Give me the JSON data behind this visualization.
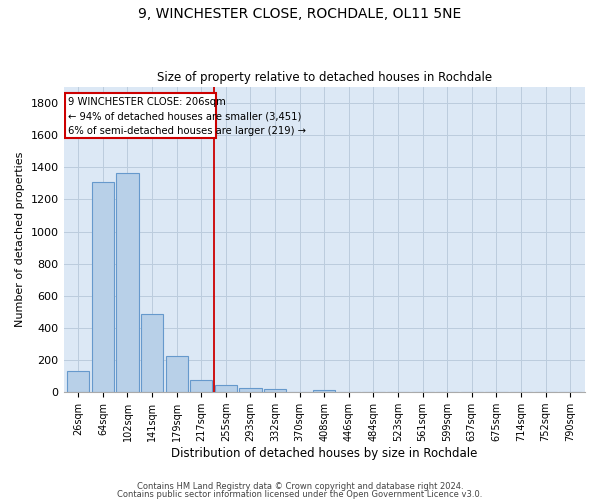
{
  "title_line1": "9, WINCHESTER CLOSE, ROCHDALE, OL11 5NE",
  "title_line2": "Size of property relative to detached houses in Rochdale",
  "xlabel": "Distribution of detached houses by size in Rochdale",
  "ylabel": "Number of detached properties",
  "bin_labels": [
    "26sqm",
    "64sqm",
    "102sqm",
    "141sqm",
    "179sqm",
    "217sqm",
    "255sqm",
    "293sqm",
    "332sqm",
    "370sqm",
    "408sqm",
    "446sqm",
    "484sqm",
    "523sqm",
    "561sqm",
    "599sqm",
    "637sqm",
    "675sqm",
    "714sqm",
    "752sqm",
    "790sqm"
  ],
  "bar_values": [
    135,
    1310,
    1365,
    490,
    225,
    75,
    45,
    28,
    18,
    0,
    15,
    0,
    0,
    0,
    0,
    0,
    0,
    0,
    0,
    0,
    0
  ],
  "bar_color": "#b8d0e8",
  "bar_edge_color": "#6699cc",
  "annotation_text_line1": "9 WINCHESTER CLOSE: 206sqm",
  "annotation_text_line2": "← 94% of detached houses are smaller (3,451)",
  "annotation_text_line3": "6% of semi-detached houses are larger (219) →",
  "annotation_box_color": "#cc0000",
  "vline_color": "#cc0000",
  "vline_x": 5.5,
  "ylim": [
    0,
    1900
  ],
  "yticks": [
    0,
    200,
    400,
    600,
    800,
    1000,
    1200,
    1400,
    1600,
    1800
  ],
  "grid_color": "#bbccdd",
  "bg_color": "#dce8f5",
  "footer_line1": "Contains HM Land Registry data © Crown copyright and database right 2024.",
  "footer_line2": "Contains public sector information licensed under the Open Government Licence v3.0."
}
